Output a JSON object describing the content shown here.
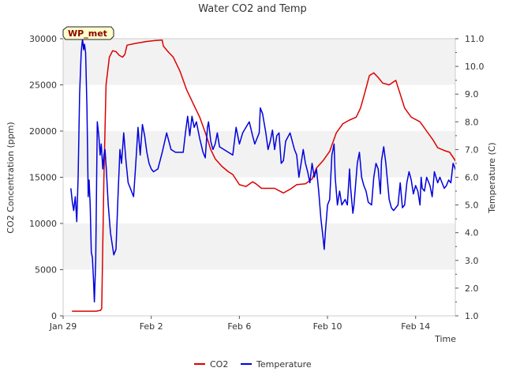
{
  "chart_data": {
    "type": "line",
    "title": "Water CO2 and Temp",
    "site_badge": "WP_met",
    "xlabel": "Time",
    "ylabel_left": "CO2 Concentration (ppm)",
    "ylabel_right": "Temperature (C)",
    "x_ticks": [
      {
        "day": 0,
        "label": "Jan 29"
      },
      {
        "day": 4,
        "label": "Feb 2"
      },
      {
        "day": 8,
        "label": "Feb 6"
      },
      {
        "day": 12,
        "label": "Feb 10"
      },
      {
        "day": 16,
        "label": "Feb 14"
      }
    ],
    "xlim_days": [
      0,
      17.8
    ],
    "y_left_ticks": [
      "0",
      "5000",
      "10000",
      "15000",
      "20000",
      "25000",
      "30000"
    ],
    "ylim_left": [
      0,
      30000
    ],
    "y_right_ticks": [
      "1.0",
      "2.0",
      "3.0",
      "4.0",
      "5.0",
      "6.0",
      "7.0",
      "8.0",
      "9.0",
      "10.0",
      "11.0"
    ],
    "ylim_right": [
      1.0,
      11.0
    ],
    "grid": "horizontal bands",
    "legend_position": "bottom-center",
    "series": [
      {
        "name": "CO2",
        "color": "#dd0000",
        "axis": "left",
        "points": [
          [
            0.4,
            500
          ],
          [
            1.5,
            500
          ],
          [
            1.7,
            600
          ],
          [
            1.75,
            800
          ],
          [
            1.85,
            15000
          ],
          [
            1.95,
            25000
          ],
          [
            2.1,
            28000
          ],
          [
            2.25,
            28700
          ],
          [
            2.4,
            28600
          ],
          [
            2.55,
            28200
          ],
          [
            2.7,
            28000
          ],
          [
            2.8,
            28300
          ],
          [
            2.9,
            29300
          ],
          [
            3.3,
            29500
          ],
          [
            3.8,
            29700
          ],
          [
            4.2,
            29800
          ],
          [
            4.5,
            29850
          ],
          [
            4.55,
            29200
          ],
          [
            4.8,
            28500
          ],
          [
            5.0,
            28000
          ],
          [
            5.3,
            26500
          ],
          [
            5.6,
            24500
          ],
          [
            5.9,
            23000
          ],
          [
            6.2,
            21500
          ],
          [
            6.5,
            19500
          ],
          [
            6.7,
            18000
          ],
          [
            6.9,
            17000
          ],
          [
            7.2,
            16200
          ],
          [
            7.5,
            15600
          ],
          [
            7.7,
            15300
          ],
          [
            8.0,
            14200
          ],
          [
            8.3,
            14000
          ],
          [
            8.6,
            14500
          ],
          [
            8.75,
            14300
          ],
          [
            9.0,
            13800
          ],
          [
            9.3,
            13800
          ],
          [
            9.6,
            13800
          ],
          [
            10.0,
            13300
          ],
          [
            10.3,
            13700
          ],
          [
            10.6,
            14200
          ],
          [
            11.0,
            14300
          ],
          [
            11.3,
            14800
          ],
          [
            11.5,
            16000
          ],
          [
            11.8,
            16800
          ],
          [
            12.1,
            17800
          ],
          [
            12.4,
            19800
          ],
          [
            12.7,
            20800
          ],
          [
            13.0,
            21200
          ],
          [
            13.3,
            21500
          ],
          [
            13.5,
            22500
          ],
          [
            13.7,
            24200
          ],
          [
            13.9,
            26000
          ],
          [
            14.1,
            26300
          ],
          [
            14.3,
            25800
          ],
          [
            14.5,
            25200
          ],
          [
            14.8,
            25000
          ],
          [
            15.1,
            25500
          ],
          [
            15.3,
            24000
          ],
          [
            15.5,
            22500
          ],
          [
            15.8,
            21500
          ],
          [
            16.2,
            21000
          ],
          [
            16.5,
            20000
          ],
          [
            16.8,
            19000
          ],
          [
            17.0,
            18200
          ],
          [
            17.3,
            17900
          ],
          [
            17.55,
            17700
          ],
          [
            17.8,
            16800
          ],
          [
            18.0,
            16000
          ],
          [
            18.3,
            15500
          ],
          [
            18.6,
            14500
          ],
          [
            18.8,
            14200
          ],
          [
            18.95,
            13400
          ]
        ]
      },
      {
        "name": "Temperature",
        "color": "#0000dd",
        "axis": "right",
        "points": [
          [
            0.35,
            5.6
          ],
          [
            0.42,
            5.1
          ],
          [
            0.48,
            4.8
          ],
          [
            0.55,
            5.3
          ],
          [
            0.62,
            4.4
          ],
          [
            0.68,
            6.0
          ],
          [
            0.75,
            9.0
          ],
          [
            0.82,
            10.5
          ],
          [
            0.88,
            11.0
          ],
          [
            0.93,
            10.6
          ],
          [
            0.97,
            10.8
          ],
          [
            1.02,
            10.5
          ],
          [
            1.08,
            8.5
          ],
          [
            1.14,
            5.3
          ],
          [
            1.18,
            5.9
          ],
          [
            1.23,
            5.0
          ],
          [
            1.28,
            3.3
          ],
          [
            1.33,
            3.1
          ],
          [
            1.38,
            2.3
          ],
          [
            1.42,
            1.5
          ],
          [
            1.48,
            3.0
          ],
          [
            1.55,
            8.0
          ],
          [
            1.62,
            7.5
          ],
          [
            1.68,
            6.8
          ],
          [
            1.73,
            7.2
          ],
          [
            1.8,
            6.3
          ],
          [
            1.85,
            6.8
          ],
          [
            1.9,
            7.0
          ],
          [
            1.96,
            6.3
          ],
          [
            2.05,
            5.0
          ],
          [
            2.15,
            4.0
          ],
          [
            2.3,
            3.2
          ],
          [
            2.4,
            3.4
          ],
          [
            2.5,
            5.5
          ],
          [
            2.58,
            7.0
          ],
          [
            2.65,
            6.5
          ],
          [
            2.75,
            7.6
          ],
          [
            2.85,
            6.6
          ],
          [
            2.95,
            5.8
          ],
          [
            3.05,
            5.6
          ],
          [
            3.2,
            5.3
          ],
          [
            3.3,
            6.5
          ],
          [
            3.4,
            7.8
          ],
          [
            3.5,
            6.8
          ],
          [
            3.6,
            7.9
          ],
          [
            3.7,
            7.5
          ],
          [
            3.8,
            6.9
          ],
          [
            3.9,
            6.5
          ],
          [
            4.0,
            6.3
          ],
          [
            4.1,
            6.2
          ],
          [
            4.3,
            6.3
          ],
          [
            4.5,
            6.9
          ],
          [
            4.7,
            7.6
          ],
          [
            4.9,
            7.0
          ],
          [
            5.1,
            6.9
          ],
          [
            5.3,
            6.9
          ],
          [
            5.45,
            6.9
          ],
          [
            5.55,
            7.6
          ],
          [
            5.65,
            8.2
          ],
          [
            5.75,
            7.5
          ],
          [
            5.85,
            8.2
          ],
          [
            5.95,
            7.8
          ],
          [
            6.05,
            8.0
          ],
          [
            6.2,
            7.4
          ],
          [
            6.35,
            6.9
          ],
          [
            6.45,
            6.7
          ],
          [
            6.55,
            7.8
          ],
          [
            6.6,
            8.0
          ],
          [
            6.7,
            7.3
          ],
          [
            6.8,
            7.0
          ],
          [
            6.9,
            7.2
          ],
          [
            7.0,
            7.6
          ],
          [
            7.1,
            7.1
          ],
          [
            7.3,
            7.0
          ],
          [
            7.5,
            6.9
          ],
          [
            7.7,
            6.8
          ],
          [
            7.85,
            7.8
          ],
          [
            8.0,
            7.2
          ],
          [
            8.15,
            7.6
          ],
          [
            8.3,
            7.8
          ],
          [
            8.45,
            8.0
          ],
          [
            8.6,
            7.5
          ],
          [
            8.7,
            7.2
          ],
          [
            8.8,
            7.4
          ],
          [
            8.9,
            7.6
          ],
          [
            8.95,
            8.5
          ],
          [
            9.05,
            8.3
          ],
          [
            9.2,
            7.6
          ],
          [
            9.3,
            7.0
          ],
          [
            9.4,
            7.3
          ],
          [
            9.5,
            7.7
          ],
          [
            9.6,
            7.0
          ],
          [
            9.7,
            7.5
          ],
          [
            9.8,
            7.6
          ],
          [
            9.9,
            6.5
          ],
          [
            10.0,
            6.6
          ],
          [
            10.1,
            7.3
          ],
          [
            10.3,
            7.6
          ],
          [
            10.5,
            7.0
          ],
          [
            10.6,
            6.8
          ],
          [
            10.7,
            6.0
          ],
          [
            10.8,
            6.5
          ],
          [
            10.9,
            7.0
          ],
          [
            11.0,
            6.5
          ],
          [
            11.1,
            6.2
          ],
          [
            11.2,
            5.8
          ],
          [
            11.3,
            6.5
          ],
          [
            11.4,
            6.0
          ],
          [
            11.5,
            6.3
          ],
          [
            11.6,
            5.5
          ],
          [
            11.7,
            4.5
          ],
          [
            11.8,
            3.8
          ],
          [
            11.85,
            3.4
          ],
          [
            11.9,
            4.0
          ],
          [
            12.0,
            5.0
          ],
          [
            12.1,
            5.2
          ],
          [
            12.2,
            6.8
          ],
          [
            12.3,
            7.2
          ],
          [
            12.35,
            6.0
          ],
          [
            12.45,
            5.0
          ],
          [
            12.55,
            5.5
          ],
          [
            12.65,
            5.0
          ],
          [
            12.8,
            5.2
          ],
          [
            12.9,
            5.0
          ],
          [
            13.0,
            6.3
          ],
          [
            13.05,
            5.6
          ],
          [
            13.15,
            4.7
          ],
          [
            13.2,
            5.0
          ],
          [
            13.35,
            6.5
          ],
          [
            13.45,
            6.9
          ],
          [
            13.55,
            6.0
          ],
          [
            13.65,
            5.7
          ],
          [
            13.75,
            5.5
          ],
          [
            13.85,
            5.1
          ],
          [
            14.0,
            5.0
          ],
          [
            14.1,
            6.0
          ],
          [
            14.2,
            6.5
          ],
          [
            14.3,
            6.3
          ],
          [
            14.4,
            5.4
          ],
          [
            14.45,
            6.6
          ],
          [
            14.55,
            7.1
          ],
          [
            14.65,
            6.5
          ],
          [
            14.8,
            5.2
          ],
          [
            14.9,
            4.9
          ],
          [
            15.0,
            4.8
          ],
          [
            15.2,
            5.0
          ],
          [
            15.3,
            5.8
          ],
          [
            15.4,
            4.9
          ],
          [
            15.5,
            5.0
          ],
          [
            15.6,
            5.8
          ],
          [
            15.7,
            6.2
          ],
          [
            15.8,
            5.9
          ],
          [
            15.9,
            5.4
          ],
          [
            16.0,
            5.7
          ],
          [
            16.1,
            5.5
          ],
          [
            16.2,
            5.0
          ],
          [
            16.25,
            6.0
          ],
          [
            16.3,
            5.6
          ],
          [
            16.4,
            5.5
          ],
          [
            16.5,
            6.0
          ],
          [
            16.65,
            5.7
          ],
          [
            16.75,
            5.3
          ],
          [
            16.85,
            6.2
          ],
          [
            17.0,
            5.8
          ],
          [
            17.1,
            6.0
          ],
          [
            17.2,
            5.8
          ],
          [
            17.3,
            5.6
          ],
          [
            17.4,
            5.7
          ],
          [
            17.5,
            5.9
          ],
          [
            17.6,
            5.8
          ],
          [
            17.7,
            6.5
          ],
          [
            17.8,
            6.3
          ],
          [
            17.9,
            6.1
          ],
          [
            18.0,
            6.0
          ],
          [
            18.15,
            6.4
          ],
          [
            18.2,
            5.3
          ],
          [
            18.3,
            5.7
          ],
          [
            18.4,
            5.8
          ],
          [
            18.45,
            6.4
          ],
          [
            18.5,
            7.6
          ],
          [
            18.6,
            8.0
          ],
          [
            18.65,
            8.7
          ],
          [
            18.75,
            7.6
          ],
          [
            18.8,
            6.8
          ],
          [
            18.85,
            7.2
          ],
          [
            18.95,
            6.5
          ]
        ]
      }
    ],
    "legend": [
      {
        "label": "CO2",
        "color": "#dd0000"
      },
      {
        "label": "Temperature",
        "color": "#0000dd"
      }
    ]
  }
}
